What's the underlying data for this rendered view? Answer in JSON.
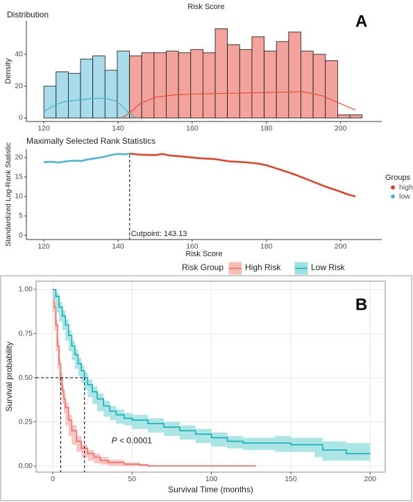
{
  "chart_data": [
    {
      "type": "histogram",
      "title": "Risk Score",
      "subtitle": "Distribution",
      "y_label": "Density",
      "panel_label": "A",
      "bins": [
        120,
        123.3,
        126.6,
        129.9,
        133.2,
        136.5,
        139.8,
        143.1,
        146.4,
        149.7,
        153,
        156.3,
        159.6,
        162.9,
        166.2,
        169.5,
        172.8,
        176.1,
        179.4,
        182.7,
        186,
        189.3,
        192.6,
        195.9,
        199.2,
        202.5,
        205.8
      ],
      "counts": [
        20,
        29,
        28,
        37,
        39,
        30,
        42,
        39,
        41,
        41,
        42,
        41,
        43,
        41,
        56,
        46,
        43,
        51,
        42,
        48,
        54,
        42,
        40,
        36,
        2,
        2
      ],
      "bar_colors": [
        "#a8dcea",
        "#a8dcea",
        "#a8dcea",
        "#a8dcea",
        "#a8dcea",
        "#a8dcea",
        "#a8dcea",
        "#f4a39c",
        "#f4a39c",
        "#f4a39c",
        "#f4a39c",
        "#f4a39c",
        "#f4a39c",
        "#f4a39c",
        "#f4a39c",
        "#f4a39c",
        "#f4a39c",
        "#f4a39c",
        "#f4a39c",
        "#f4a39c",
        "#f4a39c",
        "#f4a39c",
        "#f4a39c",
        "#f4a39c",
        "#f4a39c",
        "#f4a39c"
      ],
      "density_series": [
        {
          "color": "#4fb3d1",
          "x": [
            120,
            122,
            125,
            128,
            132,
            136,
            139,
            141,
            143,
            145
          ],
          "values": [
            4,
            7,
            10,
            11,
            12,
            12.5,
            11,
            8,
            3,
            0
          ]
        },
        {
          "color": "#e4533d",
          "x": [
            141,
            143,
            146,
            150,
            155,
            160,
            170,
            180,
            190,
            195,
            200,
            204
          ],
          "values": [
            0,
            3,
            9,
            13,
            14.5,
            15,
            15.5,
            16,
            16.5,
            14,
            9,
            5
          ]
        }
      ],
      "xlim": [
        115.3,
        211.1
      ],
      "ylim": [
        -2.2,
        61
      ],
      "xticks": [
        120,
        140,
        160,
        180,
        200
      ],
      "yticks": [
        0,
        20,
        40
      ]
    },
    {
      "type": "line",
      "title": "Maximally Selected Rank Statistics",
      "x_label": "Risk Score",
      "y_label": "Standardized Log-Rank Statistic",
      "legend_title": "Groups",
      "legend_position": "right",
      "series": [
        {
          "name": "high",
          "color": "#d9452f",
          "x": [
            143.13,
            146,
            150,
            152,
            154,
            158,
            162,
            166,
            170,
            174,
            178,
            180,
            184,
            188,
            192,
            196,
            200,
            202,
            204
          ],
          "values": [
            21,
            20.7,
            20.6,
            20.9,
            20.5,
            20.2,
            19.8,
            19.6,
            19,
            18.8,
            18.4,
            18,
            16.8,
            15.5,
            14,
            12.5,
            11.2,
            10.5,
            10
          ]
        },
        {
          "name": "low",
          "color": "#4fb3d1",
          "x": [
            120,
            122,
            124,
            126,
            128,
            130,
            132,
            134,
            136,
            138,
            140,
            142,
            143.13
          ],
          "values": [
            18.8,
            18.9,
            18.7,
            19,
            19.2,
            19.1,
            19.5,
            19.8,
            20.1,
            20.6,
            20.9,
            20.8,
            21
          ]
        }
      ],
      "annotation": {
        "text": "Cutpoint: 143.13",
        "x": 143.13
      },
      "xlim": [
        115.3,
        211.1
      ],
      "ylim": [
        -1.07,
        22.1
      ],
      "xticks": [
        120,
        140,
        160,
        180,
        200
      ],
      "yticks": [
        0,
        5,
        10,
        15,
        20
      ]
    },
    {
      "type": "step",
      "panel_label": "B",
      "x_label": "Survival Time (months)",
      "y_label": "Survival probability",
      "legend_title": "Risk Group",
      "legend_position": "top",
      "annotation": {
        "italic": "P",
        "text": " < 0.0001",
        "x": 37,
        "y": 0.14
      },
      "median_lines": {
        "y": 0.5,
        "x": [
          5,
          20
        ]
      },
      "series": [
        {
          "name": "High Risk",
          "color": "#ec6f69",
          "band_color": "#f6bcb8",
          "x": [
            0,
            1,
            2,
            3,
            4,
            5,
            6,
            7,
            8,
            10,
            12,
            15,
            18,
            22,
            26,
            30,
            35,
            45,
            55,
            60,
            128
          ],
          "values": [
            1,
            0.9,
            0.8,
            0.68,
            0.58,
            0.5,
            0.43,
            0.38,
            0.33,
            0.26,
            0.2,
            0.14,
            0.1,
            0.07,
            0.05,
            0.03,
            0.02,
            0.01,
            0.005,
            0,
            0
          ],
          "lower": [
            1,
            0.87,
            0.77,
            0.65,
            0.55,
            0.47,
            0.4,
            0.35,
            0.3,
            0.23,
            0.17,
            0.12,
            0.08,
            0.05,
            0.03,
            0.015,
            0.008,
            0.002,
            0,
            0,
            0
          ],
          "upper": [
            1,
            0.93,
            0.83,
            0.71,
            0.61,
            0.53,
            0.46,
            0.41,
            0.36,
            0.29,
            0.23,
            0.17,
            0.12,
            0.09,
            0.07,
            0.05,
            0.035,
            0.02,
            0.012,
            0.004,
            0.004
          ]
        },
        {
          "name": "Low Risk",
          "color": "#17aeb3",
          "band_color": "#9ce0e2",
          "x": [
            0,
            2,
            4,
            6,
            8,
            10,
            12,
            14,
            16,
            18,
            20,
            22,
            25,
            28,
            32,
            36,
            40,
            45,
            50,
            60,
            70,
            80,
            90,
            100,
            110,
            120,
            140,
            150,
            165,
            170,
            185,
            200
          ],
          "values": [
            1,
            0.96,
            0.9,
            0.85,
            0.8,
            0.74,
            0.68,
            0.63,
            0.58,
            0.54,
            0.5,
            0.46,
            0.42,
            0.38,
            0.34,
            0.31,
            0.29,
            0.27,
            0.26,
            0.24,
            0.22,
            0.2,
            0.18,
            0.16,
            0.14,
            0.13,
            0.13,
            0.12,
            0.12,
            0.09,
            0.07,
            0.07
          ],
          "lower": [
            1,
            0.94,
            0.87,
            0.82,
            0.77,
            0.71,
            0.65,
            0.6,
            0.55,
            0.51,
            0.47,
            0.43,
            0.39,
            0.35,
            0.31,
            0.28,
            0.26,
            0.24,
            0.23,
            0.21,
            0.19,
            0.17,
            0.15,
            0.13,
            0.11,
            0.1,
            0.09,
            0.08,
            0.08,
            0.05,
            0.03,
            0.03
          ],
          "upper": [
            1,
            0.98,
            0.93,
            0.88,
            0.83,
            0.77,
            0.71,
            0.66,
            0.61,
            0.57,
            0.53,
            0.49,
            0.45,
            0.41,
            0.37,
            0.34,
            0.32,
            0.3,
            0.29,
            0.27,
            0.25,
            0.23,
            0.21,
            0.19,
            0.17,
            0.16,
            0.17,
            0.16,
            0.16,
            0.14,
            0.13,
            0.13
          ]
        }
      ],
      "xlim": [
        -10.5,
        209.5
      ],
      "ylim": [
        -0.035,
        1.047
      ],
      "xticks": [
        0,
        50,
        100,
        150,
        200
      ],
      "yticks": [
        {
          "value": 0,
          "label": "0.00"
        },
        0.25,
        {
          "value": 0.5,
          "label": "0.50"
        },
        0.75,
        {
          "value": 1,
          "label": "1.00"
        }
      ],
      "grid": true
    }
  ]
}
